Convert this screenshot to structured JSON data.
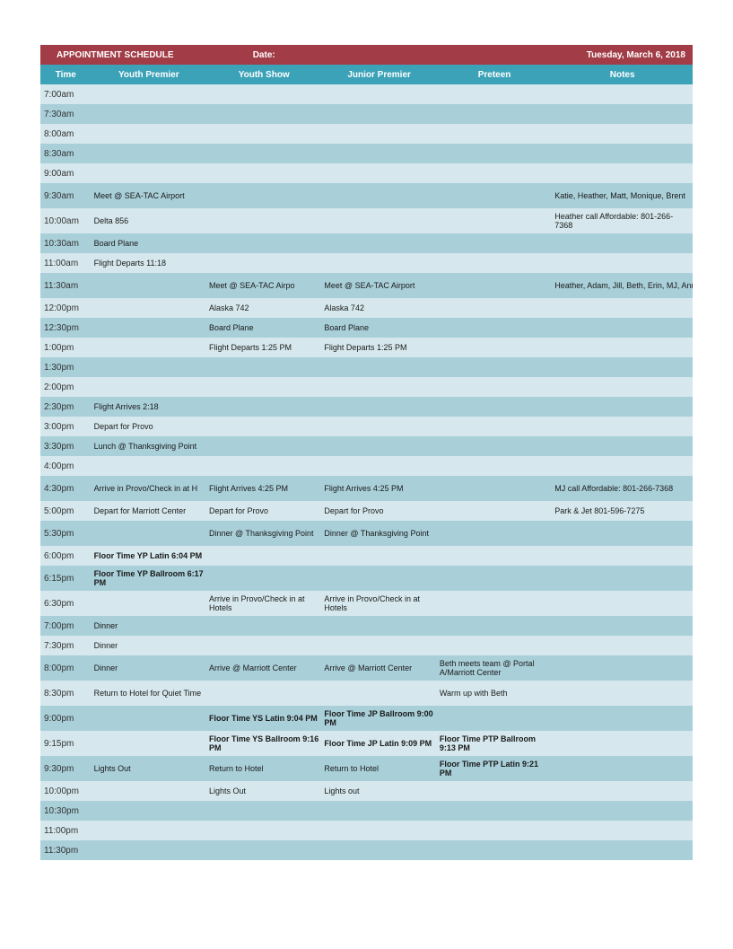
{
  "colors": {
    "title_bg": "#a23c46",
    "header_bg": "#3ca2b8",
    "row_even": "#d6e8ed",
    "row_odd": "#a9cfd9",
    "text": "#1a1a1a"
  },
  "title": {
    "text": "APPOINTMENT SCHEDULE",
    "date_label": "Date:",
    "date_value": "Tuesday, March 6, 2018"
  },
  "columns": [
    "Time",
    "Youth Premier",
    "Youth Show",
    "Junior Premier",
    "Preteen",
    "Notes"
  ],
  "rows": [
    {
      "time": "7:00am",
      "c1": "",
      "c2": "",
      "c3": "",
      "c4": "",
      "c5": ""
    },
    {
      "time": "7:30am",
      "c1": "",
      "c2": "",
      "c3": "",
      "c4": "",
      "c5": ""
    },
    {
      "time": "8:00am",
      "c1": "",
      "c2": "",
      "c3": "",
      "c4": "",
      "c5": ""
    },
    {
      "time": "8:30am",
      "c1": "",
      "c2": "",
      "c3": "",
      "c4": "",
      "c5": ""
    },
    {
      "time": "9:00am",
      "c1": "",
      "c2": "",
      "c3": "",
      "c4": "",
      "c5": ""
    },
    {
      "time": "9:30am",
      "tall": true,
      "c1": "Meet @ SEA-TAC Airport",
      "c2": "",
      "c3": "",
      "c4": "",
      "c5": "Katie, Heather, Matt, Monique, Brent"
    },
    {
      "time": "10:00am",
      "tall": true,
      "c1": "Delta 856",
      "c2": "",
      "c3": "",
      "c4": "",
      "c5": "Heather call Affordable:  801-266-7368"
    },
    {
      "time": "10:30am",
      "c1": "Board Plane",
      "c2": "",
      "c3": "",
      "c4": "",
      "c5": ""
    },
    {
      "time": "11:00am",
      "c1": "Flight Departs 11:18",
      "c2": "",
      "c3": "",
      "c4": "",
      "c5": ""
    },
    {
      "time": "11:30am",
      "tall": true,
      "c1": "",
      "c2": "Meet @ SEA-TAC Airpo",
      "c2nowrap": true,
      "c3": "Meet @ SEA-TAC Airport",
      "c3nowrap": true,
      "c4": "",
      "c5": "Heather, Adam, Jill, Beth, Erin, MJ, Anne, Cam, Melani",
      "c5nowrap": true
    },
    {
      "time": "12:00pm",
      "c1": "",
      "c2": "Alaska 742",
      "c3": "Alaska 742",
      "c4": "",
      "c5": ""
    },
    {
      "time": "12:30pm",
      "c1": "",
      "c2": "Board Plane",
      "c3": "Board Plane",
      "c4": "",
      "c5": ""
    },
    {
      "time": "1:00pm",
      "c1": "",
      "c2": "Flight Departs 1:25 PM",
      "c2nowrap": true,
      "c3": "Flight Departs 1:25 PM",
      "c3nowrap": true,
      "c4": "",
      "c5": ""
    },
    {
      "time": "1:30pm",
      "c1": "",
      "c2": "",
      "c3": "",
      "c4": "",
      "c5": ""
    },
    {
      "time": "2:00pm",
      "c1": "",
      "c2": "",
      "c3": "",
      "c4": "",
      "c5": ""
    },
    {
      "time": "2:30pm",
      "c1": "Flight Arrives 2:18",
      "c2": "",
      "c3": "",
      "c4": "",
      "c5": ""
    },
    {
      "time": "3:00pm",
      "c1": "Depart for Provo",
      "c2": "",
      "c3": "",
      "c4": "",
      "c5": ""
    },
    {
      "time": "3:30pm",
      "c1": "Lunch @ Thanksgiving Point",
      "c1nowrap": true,
      "c2": "",
      "c3": "",
      "c4": "",
      "c5": ""
    },
    {
      "time": "4:00pm",
      "c1": "",
      "c2": "",
      "c3": "",
      "c4": "",
      "c5": ""
    },
    {
      "time": "4:30pm",
      "tall": true,
      "c1": "Arrive in Provo/Check in at H",
      "c1nowrap": true,
      "c2": "Flight Arrives 4:25 PM",
      "c3": "Flight Arrives 4:25 PM",
      "c4": "",
      "c5": "MJ call Affordable:  801-266-7368"
    },
    {
      "time": "5:00pm",
      "c1": "Depart for Marriott Center",
      "c1nowrap": true,
      "c2": "Depart for Provo",
      "c3": "Depart for Provo",
      "c4": "",
      "c5": "Park & Jet 801-596-7275"
    },
    {
      "time": "5:30pm",
      "tall": true,
      "c1": "",
      "c2": "Dinner @ Thanksgiving Point",
      "c3": "Dinner @ Thanksgiving Point",
      "c4": "",
      "c5": ""
    },
    {
      "time": "6:00pm",
      "c1": "Floor Time YP Latin 6:04 PM",
      "c1bold": true,
      "c2": "",
      "c3": "",
      "c4": "",
      "c5": ""
    },
    {
      "time": "6:15pm",
      "tall": true,
      "c1": "Floor Time YP Ballroom 6:17 PM",
      "c1bold": true,
      "c2": "",
      "c3": "",
      "c4": "",
      "c5": ""
    },
    {
      "time": "6:30pm",
      "tall": true,
      "c1": "",
      "c2": "Arrive in Provo/Check in at Hotels",
      "c3": "Arrive in Provo/Check in at Hotels",
      "c4": "",
      "c5": ""
    },
    {
      "time": "7:00pm",
      "c1": "Dinner",
      "c2": "",
      "c3": "",
      "c4": "",
      "c5": ""
    },
    {
      "time": "7:30pm",
      "c1": "Dinner",
      "c2": "",
      "c3": "",
      "c4": "",
      "c5": ""
    },
    {
      "time": "8:00pm",
      "tall": true,
      "c1": "Dinner",
      "c2": "Arrive @ Marriott Center",
      "c2nowrap": true,
      "c3": "Arrive @ Marriott Center",
      "c4": "Beth meets team @ Portal A/Marriott Center",
      "c5": ""
    },
    {
      "time": "8:30pm",
      "tall": true,
      "c1": "Return to Hotel for Quiet Time",
      "c2": "",
      "c3": "",
      "c4": "Warm up with Beth",
      "c5": ""
    },
    {
      "time": "9:00pm",
      "tall": true,
      "c1": "",
      "c2": "Floor Time YS Latin 9:04 PM",
      "c2bold": true,
      "c3": "Floor Time JP Ballroom 9:00 PM",
      "c3bold": true,
      "c4": "",
      "c5": ""
    },
    {
      "time": "9:15pm",
      "tall": true,
      "c1": "",
      "c2": "Floor Time YS Ballroom 9:16 PM",
      "c2bold": true,
      "c3": "Floor Time JP Latin 9:09 PM",
      "c3bold": true,
      "c4": "Floor Time PTP Ballroom 9:13 PM",
      "c4bold": true,
      "c5": ""
    },
    {
      "time": "9:30pm",
      "tall": true,
      "c1": "Lights Out",
      "c2": "Return to Hotel",
      "c3": "Return to Hotel",
      "c4": "Floor Time PTP Latin 9:21 PM",
      "c4bold": true,
      "c5": ""
    },
    {
      "time": "10:00pm",
      "c1": "",
      "c2": "Lights Out",
      "c3": "Lights out",
      "c4": "",
      "c5": ""
    },
    {
      "time": "10:30pm",
      "c1": "",
      "c2": "",
      "c3": "",
      "c4": "",
      "c5": ""
    },
    {
      "time": "11:00pm",
      "c1": "",
      "c2": "",
      "c3": "",
      "c4": "",
      "c5": ""
    },
    {
      "time": "11:30pm",
      "c1": "",
      "c2": "",
      "c3": "",
      "c4": "",
      "c5": ""
    }
  ]
}
